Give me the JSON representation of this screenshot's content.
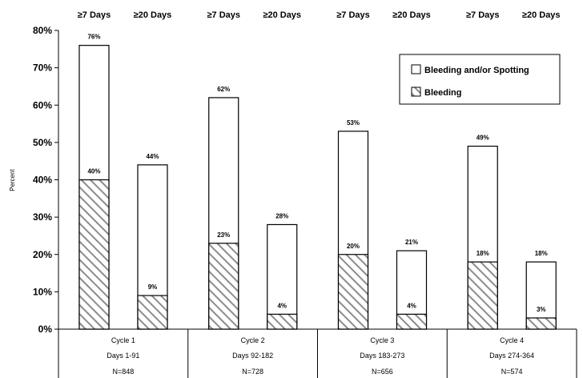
{
  "chart_data": {
    "type": "bar",
    "ylabel": "Percent",
    "ylim": [
      0,
      80
    ],
    "yticks": [
      0,
      10,
      20,
      30,
      40,
      50,
      60,
      70,
      80
    ],
    "ytick_suffix": "%",
    "legend_position": "top-right",
    "legend": [
      {
        "name": "Bleeding and/or Spotting",
        "pattern": "white"
      },
      {
        "name": "Bleeding",
        "pattern": "hatched"
      }
    ],
    "bar_headers": [
      "≥7 Days",
      "≥20 Days"
    ],
    "groups": [
      {
        "cycle": "Cycle 1",
        "days": "Days 1-91",
        "n": "N=848",
        "bars": [
          {
            "header": "≥7 Days",
            "total": 76,
            "total_label": "76%",
            "bleeding": 40,
            "bleeding_label": "40%"
          },
          {
            "header": "≥20 Days",
            "total": 44,
            "total_label": "44%",
            "bleeding": 9,
            "bleeding_label": "9%"
          }
        ]
      },
      {
        "cycle": "Cycle 2",
        "days": "Days 92-182",
        "n": "N=728",
        "bars": [
          {
            "header": "≥7 Days",
            "total": 62,
            "total_label": "62%",
            "bleeding": 23,
            "bleeding_label": "23%"
          },
          {
            "header": "≥20 Days",
            "total": 28,
            "total_label": "28%",
            "bleeding": 4,
            "bleeding_label": "4%"
          }
        ]
      },
      {
        "cycle": "Cycle 3",
        "days": "Days 183-273",
        "n": "N=656",
        "bars": [
          {
            "header": "≥7 Days",
            "total": 53,
            "total_label": "53%",
            "bleeding": 20,
            "bleeding_label": "20%"
          },
          {
            "header": "≥20 Days",
            "total": 21,
            "total_label": "21%",
            "bleeding": 4,
            "bleeding_label": "4%"
          }
        ]
      },
      {
        "cycle": "Cycle 4",
        "days": "Days 274-364",
        "n": "N=574",
        "bars": [
          {
            "header": "≥7 Days",
            "total": 49,
            "total_label": "49%",
            "bleeding": 18,
            "bleeding_label": "18%"
          },
          {
            "header": "≥20 Days",
            "total": 18,
            "total_label": "18%",
            "bleeding": 3,
            "bleeding_label": "3%"
          }
        ]
      }
    ]
  }
}
